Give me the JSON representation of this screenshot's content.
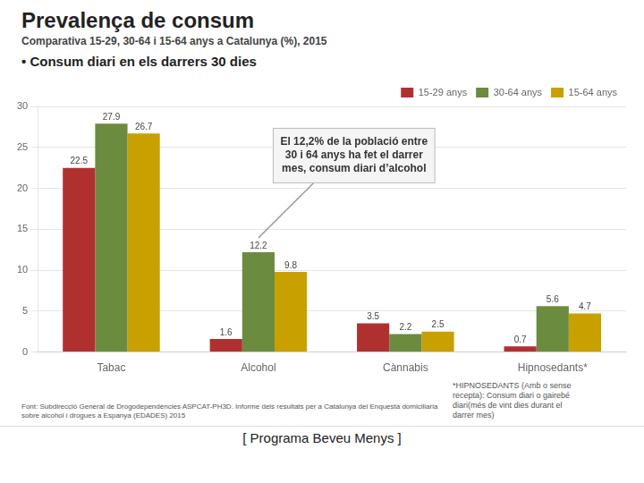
{
  "chart_data": {
    "type": "bar",
    "title": "Prevalença de consum",
    "subtitle": "Comparativa 15-29, 30-64 i 15-64 anys a Catalunya (%), 2015",
    "caption": "• Consum diari en els darrers 30 dies",
    "categories": [
      "Tabac",
      "Alcohol",
      "Cànnabis",
      "Hipnosedants*"
    ],
    "series": [
      {
        "name": "15-29 anys",
        "color": "#b03030",
        "values": [
          22.5,
          1.6,
          3.5,
          0.7
        ]
      },
      {
        "name": "30-64 anys",
        "color": "#6b8c3e",
        "values": [
          27.9,
          12.2,
          2.2,
          5.6
        ]
      },
      {
        "name": "15-64 anys",
        "color": "#c8a000",
        "values": [
          26.7,
          9.8,
          2.5,
          4.7
        ]
      }
    ],
    "ylim": [
      0,
      30
    ],
    "yticks": [
      0,
      5,
      10,
      15,
      20,
      25,
      30
    ],
    "grid": true,
    "legend": "upper right",
    "data_labels": true,
    "annotation": "El 12,2% de la població entre\n30 i 64 anys ha fet el darrer\nmes, consum diari d’alcohol",
    "footnotes": [
      "*HIPNOSEDANTS (Amb o sense\nrecepta): Consum diari o gairebé\ndiari(més de vint dies durant el\ndarrer mes)",
      "Font: Subdirecció General de Drogodependències ASPCAT-PH3D. Informe dels resultats per a Catalunya del Enquesta domiciliaria sobre alcohol i drogues a Espanya (EDADES) 2015"
    ],
    "footer": "[ Programa Beveu Menys ]"
  }
}
